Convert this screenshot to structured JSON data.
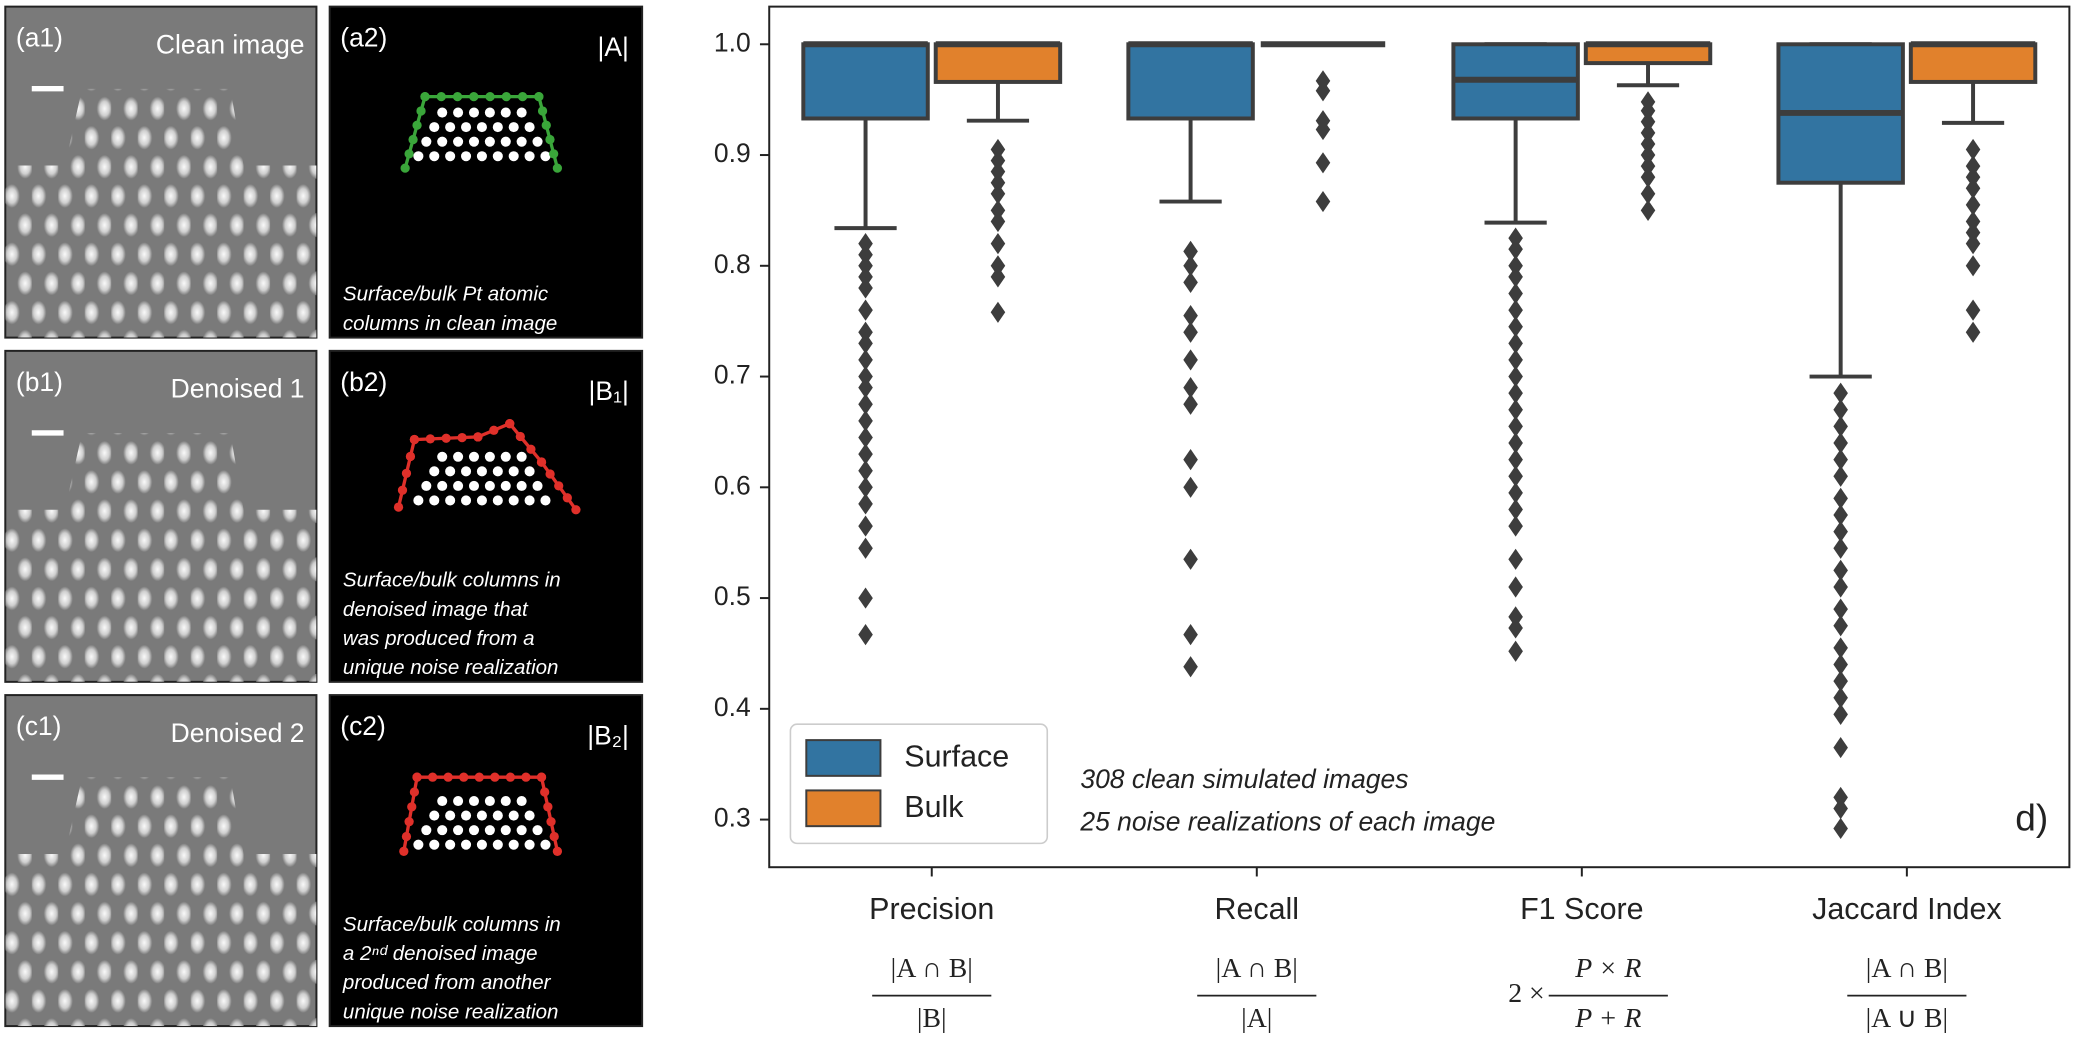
{
  "panels": [
    {
      "image_tag": "(a1)",
      "image_title": "Clean image",
      "map_tag": "(a2)",
      "map_title": "|A|",
      "outline_color": "#3aa63a",
      "caption": [
        "Surface/bulk Pt atomic",
        "columns in clean image"
      ]
    },
    {
      "image_tag": "(b1)",
      "image_title": "Denoised 1",
      "map_tag": "(b2)",
      "map_title": "|B₁|",
      "outline_color": "#e0302a",
      "caption": [
        "Surface/bulk columns in",
        "denoised image that",
        "was produced from a",
        "unique noise realization"
      ]
    },
    {
      "image_tag": "(c1)",
      "image_title": "Denoised 2",
      "map_tag": "(c2)",
      "map_title": "|B₂|",
      "outline_color": "#e0302a",
      "caption": [
        "Surface/bulk columns in",
        "a 2ⁿᵈ denoised image",
        "produced from another",
        "unique noise realization"
      ]
    }
  ],
  "chart_data": {
    "type": "box",
    "categories": [
      "Precision",
      "Recall",
      "F1 Score",
      "Jaccard Index"
    ],
    "formulas": [
      {
        "numerator": "|A ∩ B|",
        "denominator": "|B|"
      },
      {
        "numerator": "|A ∩ B|",
        "denominator": "|A|"
      },
      {
        "prefix": "2 ×",
        "numerator": "P × R",
        "denominator": "P + R"
      },
      {
        "numerator": "|A ∩ B|",
        "denominator": "|A ∪ B|"
      }
    ],
    "ylim": [
      0.257,
      1.034
    ],
    "yticks": [
      0.3,
      0.4,
      0.5,
      0.6,
      0.7,
      0.8,
      0.9,
      {
        "value": 1,
        "label": "1.0"
      }
    ],
    "legend": "lower left",
    "annotations": [
      "308 clean simulated images",
      "25 noise realizations of each image"
    ],
    "panel_label": "d)",
    "series": [
      {
        "name": "Surface",
        "color": "#3274a1",
        "boxes": [
          {
            "q1": 0.933,
            "median": 1,
            "q3": 1,
            "whislo": 0.834,
            "whishi": 1,
            "fliers": [
              0.82,
              0.81,
              0.8,
              0.79,
              0.78,
              0.76,
              0.74,
              0.73,
              0.715,
              0.7,
              0.69,
              0.675,
              0.66,
              0.645,
              0.63,
              0.615,
              0.6,
              0.585,
              0.565,
              0.545,
              0.5,
              0.467
            ]
          },
          {
            "q1": 0.933,
            "median": 1,
            "q3": 1,
            "whislo": 0.858,
            "whishi": 1,
            "fliers": [
              0.813,
              0.8,
              0.785,
              0.755,
              0.74,
              0.715,
              0.69,
              0.675,
              0.625,
              0.6,
              0.535,
              0.467,
              0.438
            ]
          },
          {
            "q1": 0.933,
            "median": 0.968,
            "q3": 1,
            "whislo": 0.839,
            "whishi": 1,
            "fliers": [
              0.825,
              0.815,
              0.8,
              0.79,
              0.775,
              0.76,
              0.745,
              0.73,
              0.715,
              0.7,
              0.685,
              0.67,
              0.655,
              0.64,
              0.625,
              0.61,
              0.595,
              0.58,
              0.565,
              0.535,
              0.51,
              0.483,
              0.473,
              0.452
            ]
          },
          {
            "q1": 0.875,
            "median": 0.938,
            "q3": 1,
            "whislo": 0.7,
            "whishi": 1,
            "fliers": [
              0.685,
              0.67,
              0.655,
              0.64,
              0.625,
              0.61,
              0.59,
              0.575,
              0.56,
              0.545,
              0.525,
              0.51,
              0.49,
              0.475,
              0.455,
              0.44,
              0.425,
              0.41,
              0.395,
              0.365,
              0.32,
              0.31,
              0.292
            ]
          }
        ]
      },
      {
        "name": "Bulk",
        "color": "#e1812c",
        "boxes": [
          {
            "q1": 0.966,
            "median": 1,
            "q3": 1,
            "whislo": 0.931,
            "whishi": 1,
            "fliers": [
              0.905,
              0.895,
              0.885,
              0.875,
              0.865,
              0.85,
              0.84,
              0.82,
              0.8,
              0.79,
              0.758
            ]
          },
          {
            "q1": 1,
            "median": 1,
            "q3": 1,
            "whislo": 1,
            "whishi": 1,
            "fliers": [
              0.967,
              0.958,
              0.931,
              0.923,
              0.893,
              0.858
            ]
          },
          {
            "q1": 0.983,
            "median": 1,
            "q3": 1,
            "whislo": 0.963,
            "whishi": 1,
            "fliers": [
              0.948,
              0.94,
              0.93,
              0.92,
              0.91,
              0.9,
              0.89,
              0.88,
              0.865,
              0.85
            ]
          },
          {
            "q1": 0.966,
            "median": 1,
            "q3": 1,
            "whislo": 0.929,
            "whishi": 1,
            "fliers": [
              0.905,
              0.89,
              0.88,
              0.87,
              0.855,
              0.84,
              0.83,
              0.82,
              0.8,
              0.76,
              0.74
            ]
          }
        ]
      }
    ]
  }
}
